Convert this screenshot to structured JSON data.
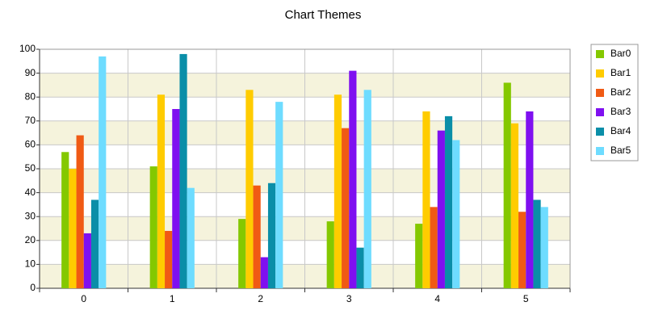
{
  "chart_data": {
    "type": "bar",
    "title": "Chart Themes",
    "categories": [
      "0",
      "1",
      "2",
      "3",
      "4",
      "5"
    ],
    "series": [
      {
        "name": "Bar0",
        "color": "#84c800",
        "values": [
          57,
          51,
          29,
          28,
          27,
          86
        ]
      },
      {
        "name": "Bar1",
        "color": "#ffcc00",
        "values": [
          50,
          81,
          83,
          81,
          74,
          69
        ]
      },
      {
        "name": "Bar2",
        "color": "#f05a14",
        "values": [
          64,
          24,
          43,
          67,
          34,
          32
        ]
      },
      {
        "name": "Bar3",
        "color": "#7f10f0",
        "values": [
          23,
          75,
          13,
          91,
          66,
          74
        ]
      },
      {
        "name": "Bar4",
        "color": "#0a8ea8",
        "values": [
          37,
          98,
          44,
          17,
          72,
          37
        ]
      },
      {
        "name": "Bar5",
        "color": "#6edcff",
        "values": [
          97,
          42,
          78,
          83,
          62,
          34
        ]
      }
    ],
    "ylim": [
      0,
      100
    ],
    "yticks": [
      0,
      10,
      20,
      30,
      40,
      50,
      60,
      70,
      80,
      90,
      100
    ],
    "grid": true,
    "band_color": "#f5f3dc",
    "legend": "right"
  }
}
